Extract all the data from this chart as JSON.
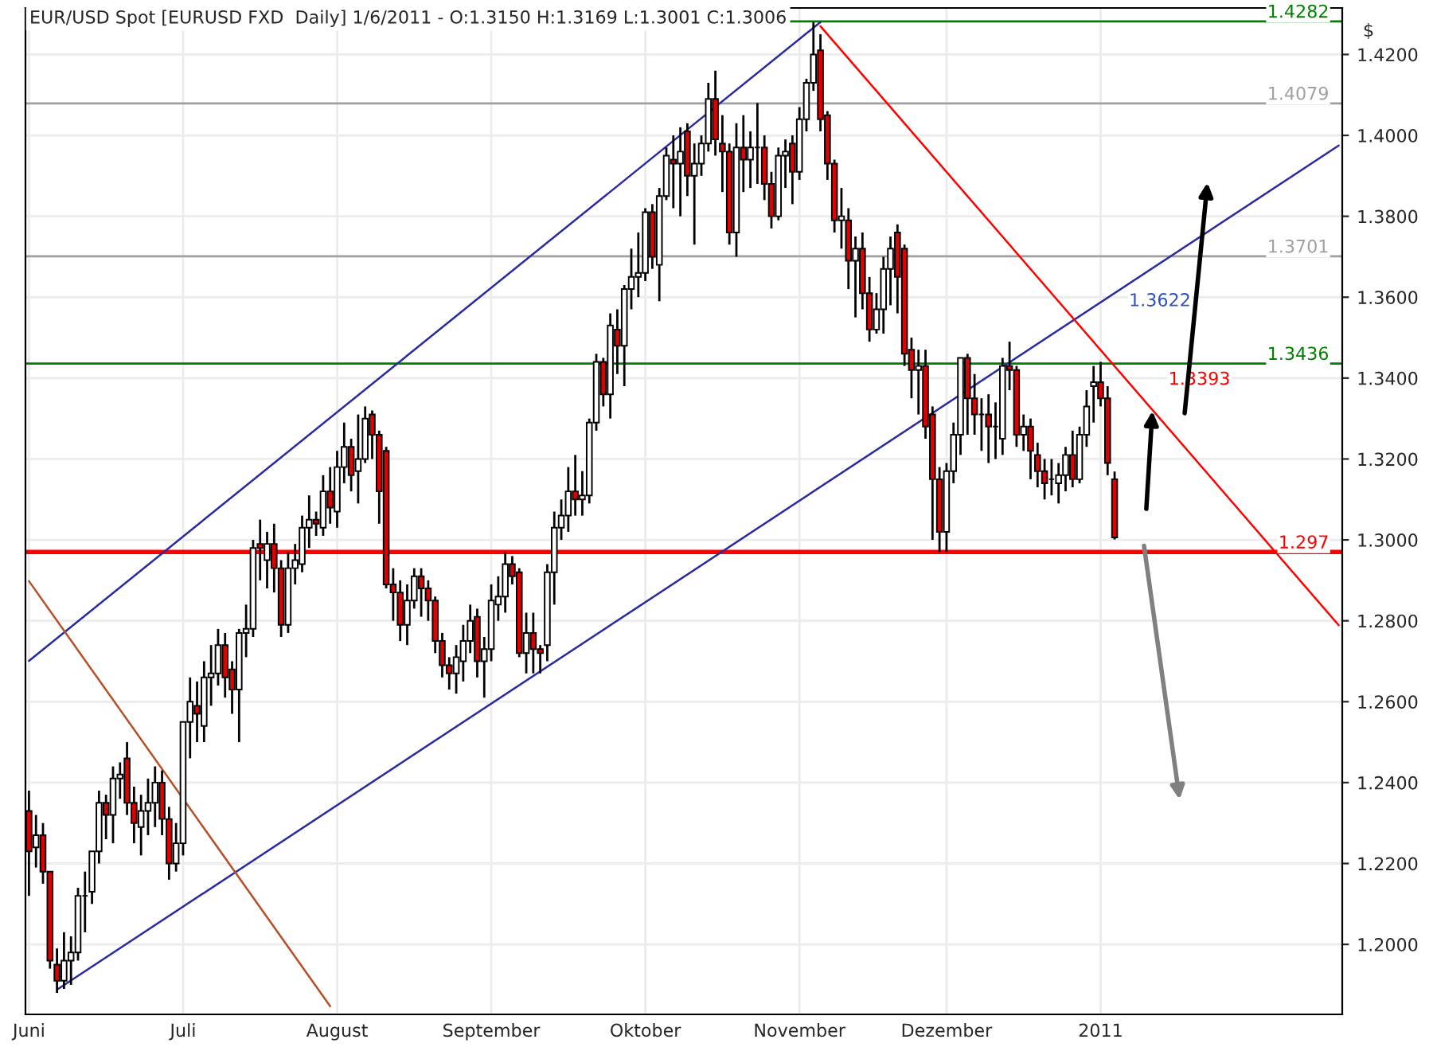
{
  "chart_data": {
    "type": "candlestick",
    "title": "EUR/USD Spot [EURUSD FXD  Daily] 1/6/2011 - O:1.3150 H:1.3169 L:1.3001 C:1.3006",
    "ylabel": "$",
    "categories": [
      "Juni",
      null,
      null,
      null,
      null,
      null,
      null,
      null,
      null,
      null,
      null,
      null,
      null,
      null,
      null,
      null,
      null,
      null,
      null,
      null,
      null,
      null,
      "Juli",
      null,
      null,
      null,
      null,
      null,
      null,
      null,
      null,
      null,
      null,
      null,
      null,
      null,
      null,
      null,
      null,
      null,
      null,
      null,
      null,
      null,
      "August",
      null,
      null,
      null,
      null,
      null,
      null,
      null,
      null,
      null,
      null,
      null,
      null,
      null,
      null,
      null,
      null,
      null,
      null,
      null,
      null,
      null,
      "September",
      null,
      null,
      null,
      null,
      null,
      null,
      null,
      null,
      null,
      null,
      null,
      null,
      null,
      null,
      null,
      null,
      null,
      null,
      null,
      null,
      null,
      "Oktober",
      null,
      null,
      null,
      null,
      null,
      null,
      null,
      null,
      null,
      null,
      null,
      null,
      null,
      null,
      null,
      null,
      null,
      null,
      null,
      null,
      null,
      "November",
      null,
      null,
      null,
      null,
      null,
      null,
      null,
      null,
      null,
      null,
      null,
      null,
      null,
      null,
      null,
      null,
      null,
      null,
      null,
      null,
      "Dezember",
      null,
      null,
      null,
      null,
      null,
      null,
      null,
      null,
      null,
      null,
      null,
      null,
      null,
      null,
      null,
      null,
      null,
      null,
      null,
      null,
      null,
      "2011",
      null,
      null,
      null,
      null,
      null,
      null,
      null,
      null,
      null,
      null,
      null,
      null,
      null,
      null,
      null,
      null,
      null,
      null,
      null,
      null,
      null,
      null,
      null,
      null,
      null,
      null,
      null,
      null,
      null,
      null,
      null,
      null,
      null,
      null
    ],
    "ohlc": [
      [
        1.233,
        1.238,
        1.212,
        1.223
      ],
      [
        1.224,
        1.232,
        1.219,
        1.227
      ],
      [
        1.227,
        1.23,
        1.215,
        1.218
      ],
      [
        1.218,
        1.218,
        1.194,
        1.196
      ],
      [
        1.195,
        1.199,
        1.188,
        1.191
      ],
      [
        1.191,
        1.203,
        1.189,
        1.196
      ],
      [
        1.196,
        1.202,
        1.19,
        1.198
      ],
      [
        1.198,
        1.214,
        1.196,
        1.212
      ],
      [
        1.212,
        1.218,
        1.203,
        1.212
      ],
      [
        1.213,
        1.223,
        1.21,
        1.223
      ],
      [
        1.223,
        1.238,
        1.22,
        1.235
      ],
      [
        1.235,
        1.237,
        1.226,
        1.232
      ],
      [
        1.232,
        1.244,
        1.225,
        1.241
      ],
      [
        1.241,
        1.245,
        1.236,
        1.242
      ],
      [
        1.246,
        1.25,
        1.232,
        1.235
      ],
      [
        1.235,
        1.239,
        1.225,
        1.23
      ],
      [
        1.229,
        1.237,
        1.222,
        1.233
      ],
      [
        1.233,
        1.241,
        1.227,
        1.235
      ],
      [
        1.235,
        1.244,
        1.229,
        1.24
      ],
      [
        1.24,
        1.243,
        1.227,
        1.231
      ],
      [
        1.231,
        1.234,
        1.216,
        1.22
      ],
      [
        1.22,
        1.23,
        1.218,
        1.225
      ],
      [
        1.225,
        1.255,
        1.222,
        1.255
      ],
      [
        1.255,
        1.266,
        1.246,
        1.26
      ],
      [
        1.259,
        1.265,
        1.25,
        1.257
      ],
      [
        1.254,
        1.27,
        1.25,
        1.266
      ],
      [
        1.266,
        1.274,
        1.259,
        1.267
      ],
      [
        1.267,
        1.278,
        1.264,
        1.274
      ],
      [
        1.274,
        1.277,
        1.261,
        1.266
      ],
      [
        1.268,
        1.27,
        1.257,
        1.263
      ],
      [
        1.263,
        1.278,
        1.25,
        1.277
      ],
      [
        1.277,
        1.284,
        1.271,
        1.278
      ],
      [
        1.278,
        1.3,
        1.276,
        1.298
      ],
      [
        1.299,
        1.305,
        1.29,
        1.298
      ],
      [
        1.295,
        1.302,
        1.288,
        1.299
      ],
      [
        1.299,
        1.304,
        1.287,
        1.293
      ],
      [
        1.293,
        1.295,
        1.276,
        1.279
      ],
      [
        1.279,
        1.297,
        1.277,
        1.293
      ],
      [
        1.293,
        1.299,
        1.289,
        1.295
      ],
      [
        1.294,
        1.306,
        1.292,
        1.303
      ],
      [
        1.303,
        1.311,
        1.298,
        1.305
      ],
      [
        1.305,
        1.307,
        1.301,
        1.304
      ],
      [
        1.303,
        1.316,
        1.301,
        1.312
      ],
      [
        1.312,
        1.318,
        1.304,
        1.308
      ],
      [
        1.307,
        1.322,
        1.303,
        1.318
      ],
      [
        1.318,
        1.329,
        1.314,
        1.323
      ],
      [
        1.323,
        1.325,
        1.312,
        1.316
      ],
      [
        1.317,
        1.331,
        1.309,
        1.32
      ],
      [
        1.32,
        1.333,
        1.319,
        1.33
      ],
      [
        1.331,
        1.332,
        1.32,
        1.326
      ],
      [
        1.326,
        1.327,
        1.304,
        1.312
      ],
      [
        1.322,
        1.323,
        1.288,
        1.289
      ],
      [
        1.289,
        1.293,
        1.28,
        1.287
      ],
      [
        1.287,
        1.29,
        1.275,
        1.279
      ],
      [
        1.279,
        1.289,
        1.274,
        1.285
      ],
      [
        1.285,
        1.293,
        1.283,
        1.291
      ],
      [
        1.291,
        1.293,
        1.281,
        1.288
      ],
      [
        1.288,
        1.29,
        1.28,
        1.285
      ],
      [
        1.285,
        1.286,
        1.272,
        1.275
      ],
      [
        1.275,
        1.277,
        1.266,
        1.269
      ],
      [
        1.269,
        1.271,
        1.263,
        1.267
      ],
      [
        1.267,
        1.274,
        1.262,
        1.271
      ],
      [
        1.27,
        1.279,
        1.265,
        1.275
      ],
      [
        1.275,
        1.284,
        1.272,
        1.28
      ],
      [
        1.281,
        1.283,
        1.266,
        1.27
      ],
      [
        1.27,
        1.276,
        1.261,
        1.273
      ],
      [
        1.273,
        1.289,
        1.27,
        1.285
      ],
      [
        1.284,
        1.291,
        1.28,
        1.286
      ],
      [
        1.286,
        1.297,
        1.282,
        1.294
      ],
      [
        1.294,
        1.296,
        1.289,
        1.291
      ],
      [
        1.292,
        1.293,
        1.271,
        1.272
      ],
      [
        1.272,
        1.282,
        1.267,
        1.277
      ],
      [
        1.277,
        1.282,
        1.267,
        1.273
      ],
      [
        1.273,
        1.274,
        1.267,
        1.272
      ],
      [
        1.274,
        1.294,
        1.27,
        1.292
      ],
      [
        1.292,
        1.307,
        1.284,
        1.303
      ],
      [
        1.303,
        1.31,
        1.3,
        1.306
      ],
      [
        1.306,
        1.318,
        1.302,
        1.312
      ],
      [
        1.312,
        1.321,
        1.306,
        1.31
      ],
      [
        1.31,
        1.317,
        1.306,
        1.311
      ],
      [
        1.311,
        1.33,
        1.309,
        1.329
      ],
      [
        1.329,
        1.346,
        1.327,
        1.344
      ],
      [
        1.344,
        1.345,
        1.333,
        1.336
      ],
      [
        1.336,
        1.356,
        1.33,
        1.353
      ],
      [
        1.352,
        1.357,
        1.341,
        1.348
      ],
      [
        1.348,
        1.363,
        1.338,
        1.362
      ],
      [
        1.362,
        1.372,
        1.357,
        1.365
      ],
      [
        1.365,
        1.376,
        1.36,
        1.366
      ],
      [
        1.366,
        1.382,
        1.364,
        1.381
      ],
      [
        1.381,
        1.383,
        1.367,
        1.37
      ],
      [
        1.368,
        1.387,
        1.359,
        1.385
      ],
      [
        1.385,
        1.397,
        1.384,
        1.395
      ],
      [
        1.394,
        1.4,
        1.382,
        1.393
      ],
      [
        1.393,
        1.402,
        1.38,
        1.396
      ],
      [
        1.401,
        1.403,
        1.385,
        1.39
      ],
      [
        1.39,
        1.398,
        1.373,
        1.393
      ],
      [
        1.393,
        1.4,
        1.39,
        1.398
      ],
      [
        1.398,
        1.413,
        1.396,
        1.409
      ],
      [
        1.409,
        1.416,
        1.395,
        1.399
      ],
      [
        1.398,
        1.405,
        1.386,
        1.396
      ],
      [
        1.396,
        1.398,
        1.373,
        1.376
      ],
      [
        1.376,
        1.403,
        1.37,
        1.397
      ],
      [
        1.397,
        1.405,
        1.386,
        1.394
      ],
      [
        1.394,
        1.401,
        1.387,
        1.397
      ],
      [
        1.397,
        1.408,
        1.388,
        1.397
      ],
      [
        1.397,
        1.4,
        1.384,
        1.388
      ],
      [
        1.388,
        1.391,
        1.377,
        1.38
      ],
      [
        1.38,
        1.397,
        1.379,
        1.395
      ],
      [
        1.395,
        1.399,
        1.387,
        1.396
      ],
      [
        1.398,
        1.4,
        1.383,
        1.391
      ],
      [
        1.391,
        1.407,
        1.389,
        1.404
      ],
      [
        1.404,
        1.414,
        1.401,
        1.413
      ],
      [
        1.413,
        1.428,
        1.411,
        1.42
      ],
      [
        1.421,
        1.425,
        1.401,
        1.404
      ],
      [
        1.405,
        1.406,
        1.389,
        1.393
      ],
      [
        1.393,
        1.394,
        1.376,
        1.379
      ],
      [
        1.379,
        1.387,
        1.372,
        1.38
      ],
      [
        1.379,
        1.382,
        1.362,
        1.369
      ],
      [
        1.369,
        1.375,
        1.355,
        1.372
      ],
      [
        1.372,
        1.376,
        1.357,
        1.361
      ],
      [
        1.361,
        1.365,
        1.349,
        1.352
      ],
      [
        1.352,
        1.361,
        1.351,
        1.357
      ],
      [
        1.357,
        1.37,
        1.351,
        1.367
      ],
      [
        1.367,
        1.375,
        1.358,
        1.372
      ],
      [
        1.376,
        1.378,
        1.356,
        1.365
      ],
      [
        1.372,
        1.373,
        1.343,
        1.346
      ],
      [
        1.347,
        1.35,
        1.335,
        1.342
      ],
      [
        1.342,
        1.347,
        1.331,
        1.343
      ],
      [
        1.343,
        1.347,
        1.325,
        1.328
      ],
      [
        1.331,
        1.333,
        1.3,
        1.315
      ],
      [
        1.315,
        1.318,
        1.297,
        1.302
      ],
      [
        1.302,
        1.319,
        1.297,
        1.317
      ],
      [
        1.317,
        1.329,
        1.314,
        1.326
      ],
      [
        1.326,
        1.345,
        1.321,
        1.345
      ],
      [
        1.345,
        1.346,
        1.326,
        1.335
      ],
      [
        1.335,
        1.341,
        1.326,
        1.331
      ],
      [
        1.331,
        1.335,
        1.322,
        1.331
      ],
      [
        1.331,
        1.336,
        1.319,
        1.328
      ],
      [
        1.328,
        1.334,
        1.32,
        1.328
      ],
      [
        1.325,
        1.345,
        1.321,
        1.343
      ],
      [
        1.343,
        1.349,
        1.337,
        1.342
      ],
      [
        1.342,
        1.343,
        1.323,
        1.326
      ],
      [
        1.326,
        1.331,
        1.322,
        1.328
      ],
      [
        1.328,
        1.33,
        1.315,
        1.322
      ],
      [
        1.321,
        1.324,
        1.313,
        1.317
      ],
      [
        1.317,
        1.32,
        1.31,
        1.314
      ],
      [
        1.315,
        1.32,
        1.311,
        1.315
      ],
      [
        1.314,
        1.319,
        1.309,
        1.316
      ],
      [
        1.316,
        1.323,
        1.312,
        1.321
      ],
      [
        1.321,
        1.327,
        1.313,
        1.315
      ],
      [
        1.315,
        1.328,
        1.314,
        1.326
      ],
      [
        1.326,
        1.337,
        1.323,
        1.333
      ],
      [
        1.338,
        1.343,
        1.329,
        1.339
      ],
      [
        1.339,
        1.344,
        1.333,
        1.335
      ],
      [
        1.335,
        1.338,
        1.316,
        1.319
      ],
      [
        1.315,
        1.3169,
        1.3001,
        1.3006
      ],
      null,
      null,
      null,
      null,
      null,
      null,
      null,
      null,
      null,
      null,
      null,
      null,
      null,
      null,
      null,
      null,
      null,
      null,
      null,
      null,
      null,
      null,
      null,
      null,
      null,
      null,
      null,
      null,
      null,
      null,
      null,
      null
    ],
    "series": [
      {
        "type": "line",
        "color": "#2a2aa0",
        "values": [
          null,
          null,
          null,
          null,
          1.1888,
          null,
          null,
          null,
          null,
          null,
          null,
          null,
          null,
          null,
          null,
          null,
          null,
          null,
          null,
          null,
          null,
          null,
          null,
          null,
          null,
          null,
          null,
          null,
          null,
          null,
          null,
          null,
          null,
          null,
          null,
          null,
          null,
          null,
          null,
          null,
          null,
          null,
          null,
          null,
          null,
          null,
          null,
          null,
          null,
          null,
          null,
          null,
          null,
          null,
          null,
          null,
          null,
          null,
          null,
          null,
          null,
          null,
          null,
          null,
          null,
          null,
          null,
          null,
          null,
          null,
          null,
          null,
          null,
          null,
          null,
          null,
          null,
          null,
          null,
          null,
          null,
          null,
          null,
          null,
          null,
          null,
          null,
          null,
          null,
          null,
          null,
          null,
          null,
          null,
          null,
          null,
          null,
          null,
          null,
          null,
          null,
          null,
          null,
          null,
          null,
          null,
          null,
          null,
          null,
          null,
          null,
          null,
          null,
          null,
          null,
          null,
          null,
          null,
          null,
          null,
          null,
          null,
          null,
          null,
          null,
          null,
          null,
          null,
          null,
          null,
          null,
          null,
          null,
          null,
          null,
          null,
          null,
          null,
          null,
          null,
          null,
          null,
          null,
          null,
          null,
          null,
          null,
          null,
          null,
          null,
          null,
          null,
          null,
          null,
          null,
          null,
          null,
          null,
          null,
          null,
          null,
          null,
          null,
          null,
          null,
          null,
          null,
          null,
          null,
          null,
          null,
          null,
          null,
          null,
          null,
          null,
          null,
          null,
          null,
          null,
          null,
          null,
          null,
          null,
          null,
          null,
          null,
          1.3975
        ]
      },
      {
        "type": "line",
        "color": "#2a2aa0",
        "values": [
          1.2701,
          null,
          null,
          null,
          null,
          null,
          null,
          null,
          null,
          null,
          null,
          null,
          null,
          null,
          null,
          null,
          null,
          null,
          null,
          null,
          null,
          null,
          null,
          null,
          null,
          null,
          null,
          null,
          null,
          null,
          null,
          null,
          null,
          null,
          null,
          null,
          null,
          null,
          null,
          null,
          null,
          null,
          null,
          null,
          null,
          null,
          null,
          null,
          null,
          null,
          null,
          null,
          null,
          null,
          null,
          null,
          null,
          null,
          null,
          null,
          null,
          null,
          null,
          null,
          null,
          null,
          null,
          null,
          null,
          null,
          null,
          null,
          null,
          null,
          null,
          null,
          null,
          null,
          null,
          null,
          null,
          null,
          null,
          null,
          null,
          null,
          null,
          null,
          null,
          null,
          null,
          null,
          null,
          null,
          null,
          null,
          null,
          null,
          null,
          null,
          null,
          null,
          null,
          null,
          null,
          null,
          null,
          null,
          null,
          null,
          null,
          null,
          null,
          1.428,
          null,
          null,
          null,
          null,
          null,
          null,
          null,
          null,
          null,
          null,
          null,
          null,
          null,
          null,
          null,
          null,
          null,
          null,
          null,
          null,
          null,
          null,
          null,
          null,
          null,
          null,
          null,
          null,
          null,
          null,
          null,
          null,
          null,
          null,
          null,
          null,
          null,
          null,
          null,
          null,
          null,
          null,
          null,
          null,
          null,
          null,
          null,
          null,
          null,
          null,
          null,
          null,
          null,
          null,
          null,
          null,
          null,
          null,
          null,
          null,
          null,
          null,
          null,
          null,
          null,
          null,
          null,
          null,
          null,
          null,
          null,
          null,
          null,
          null
        ]
      },
      {
        "type": "line",
        "color": "#ff0000",
        "values": [
          null,
          null,
          null,
          null,
          null,
          null,
          null,
          null,
          null,
          null,
          null,
          null,
          null,
          null,
          null,
          null,
          null,
          null,
          null,
          null,
          null,
          null,
          null,
          null,
          null,
          null,
          null,
          null,
          null,
          null,
          null,
          null,
          null,
          null,
          null,
          null,
          null,
          null,
          null,
          null,
          null,
          null,
          null,
          null,
          null,
          null,
          null,
          null,
          null,
          null,
          null,
          null,
          null,
          null,
          null,
          null,
          null,
          null,
          null,
          null,
          null,
          null,
          null,
          null,
          null,
          null,
          null,
          null,
          null,
          null,
          null,
          null,
          null,
          null,
          null,
          null,
          null,
          null,
          null,
          null,
          null,
          null,
          null,
          null,
          null,
          null,
          null,
          null,
          null,
          null,
          null,
          null,
          null,
          null,
          null,
          null,
          null,
          null,
          null,
          null,
          null,
          null,
          null,
          null,
          null,
          null,
          null,
          null,
          null,
          null,
          null,
          null,
          null,
          1.427,
          null,
          null,
          null,
          null,
          null,
          null,
          null,
          null,
          null,
          null,
          null,
          null,
          null,
          null,
          null,
          null,
          null,
          null,
          null,
          null,
          null,
          null,
          null,
          null,
          null,
          null,
          null,
          null,
          null,
          null,
          null,
          null,
          null,
          null,
          null,
          null,
          null,
          null,
          null,
          null,
          null,
          null,
          null,
          null,
          null,
          null,
          null,
          null,
          null,
          null,
          null,
          null,
          null,
          null,
          null,
          null,
          null,
          null,
          null,
          null,
          null,
          null,
          null,
          null,
          null,
          null,
          null,
          null,
          null,
          null,
          null,
          null,
          null,
          1.2789
        ]
      },
      {
        "type": "line",
        "color": "#b5502a",
        "values": [
          1.2898,
          null,
          null,
          null,
          null,
          null,
          null,
          null,
          null,
          null,
          null,
          null,
          null,
          null,
          null,
          null,
          null,
          null,
          null,
          null,
          null,
          null,
          null,
          null,
          null,
          null,
          null,
          null,
          null,
          null,
          null,
          null,
          null,
          null,
          null,
          null,
          null,
          null,
          null,
          null,
          null,
          null,
          null,
          1.1847,
          null,
          null,
          null,
          null,
          null,
          null,
          null,
          null,
          null,
          null,
          null,
          null,
          null,
          null,
          null,
          null,
          null,
          null,
          null,
          null,
          null,
          null,
          null,
          null,
          null,
          null,
          null,
          null,
          null,
          null,
          null,
          null,
          null,
          null,
          null,
          null,
          null,
          null,
          null,
          null,
          null,
          null,
          null,
          null,
          null,
          null,
          null,
          null,
          null,
          null,
          null,
          null,
          null,
          null,
          null,
          null,
          null,
          null,
          null,
          null,
          null,
          null,
          null,
          null,
          null,
          null,
          null,
          null,
          null,
          null,
          null,
          null,
          null,
          null,
          null,
          null,
          null,
          null,
          null,
          null,
          null,
          null,
          null,
          null,
          null,
          null,
          null,
          null,
          null,
          null,
          null,
          null,
          null,
          null,
          null,
          null,
          null,
          null,
          null,
          null,
          null,
          null,
          null,
          null,
          null,
          null,
          null,
          null,
          null,
          null,
          null,
          null,
          null,
          null,
          null,
          null,
          null,
          null,
          null,
          null,
          null,
          null,
          null,
          null,
          null,
          null,
          null,
          null,
          null,
          null,
          null,
          null,
          null,
          null,
          null,
          null,
          null,
          null,
          null,
          null,
          null,
          null,
          null,
          null
        ]
      }
    ],
    "ref_lines": [
      {
        "axis": "y",
        "value": 1.4282,
        "label": "1.4282",
        "color": "#008000"
      },
      {
        "axis": "y",
        "value": 1.4079,
        "label": "1.4079",
        "color": "#a0a0a0"
      },
      {
        "axis": "y",
        "value": 1.3701,
        "label": "1.3701",
        "color": "#a0a0a0"
      },
      {
        "axis": "y",
        "value": 1.3436,
        "label": "1.3436",
        "color": "#008000"
      },
      {
        "axis": "y",
        "value": 1.297,
        "label": "1.297",
        "color": "#ff0000"
      }
    ],
    "annotations": [
      "1.3622",
      "1.3393"
    ],
    "ylim": [
      1.1827,
      1.4315
    ],
    "yticks": [
      {
        "value": 1.2,
        "label": "1.2000"
      },
      {
        "value": 1.22,
        "label": "1.2200"
      },
      {
        "value": 1.24,
        "label": "1.2400"
      },
      {
        "value": 1.26,
        "label": "1.2600"
      },
      {
        "value": 1.28,
        "label": "1.2800"
      },
      {
        "value": 1.3,
        "label": "1.3000"
      },
      {
        "value": 1.32,
        "label": "1.3200"
      },
      {
        "value": 1.34,
        "label": "1.3400"
      },
      {
        "value": 1.36,
        "label": "1.3600"
      },
      {
        "value": 1.38,
        "label": "1.3800"
      },
      {
        "value": 1.4,
        "label": "1.4000"
      },
      {
        "value": 1.42,
        "label": "1.4200"
      }
    ],
    "grid": true
  }
}
